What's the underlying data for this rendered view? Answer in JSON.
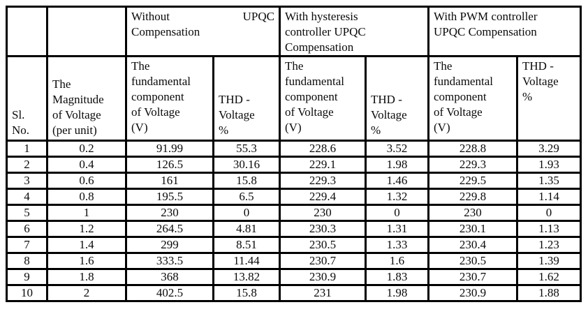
{
  "page": {
    "background_color": "#ffffff",
    "border_color": "#000000",
    "text_color": "#0a0a0a"
  },
  "table": {
    "group_headers": [
      {
        "word_left": "Without",
        "word_right": "UPQC",
        "line2": "Compensation"
      },
      {
        "label": "With hysteresis\ncontroller UPQC\nCompensation"
      },
      {
        "label": "With PWM controller\nUPQC Compensation"
      }
    ],
    "column_headers": [
      "Sl.\nNo.",
      "The\nMagnitude\nof Voltage\n(per unit)",
      "The\nfundamental\ncomponent\nof Voltage\n(V)",
      "THD -\nVoltage\n%",
      "The\nfundamental\ncomponent\nof Voltage\n(V)",
      "THD -\nVoltage\n%",
      "The\nfundamental\ncomponent\nof Voltage\n(V)",
      "THD -\nVoltage\n%"
    ],
    "rows": [
      [
        "1",
        "0.2",
        "91.99",
        "55.3",
        "228.6",
        "3.52",
        "228.8",
        "3.29"
      ],
      [
        "2",
        "0.4",
        "126.5",
        "30.16",
        "229.1",
        "1.98",
        "229.3",
        "1.93"
      ],
      [
        "3",
        "0.6",
        "161",
        "15.8",
        "229.3",
        "1.46",
        "229.5",
        "1.35"
      ],
      [
        "4",
        "0.8",
        "195.5",
        "6.5",
        "229.4",
        "1.32",
        "229.8",
        "1.14"
      ],
      [
        "5",
        "1",
        "230",
        "0",
        "230",
        "0",
        "230",
        "0"
      ],
      [
        "6",
        "1.2",
        "264.5",
        "4.81",
        "230.3",
        "1.31",
        "230.1",
        "1.13"
      ],
      [
        "7",
        "1.4",
        "299",
        "8.51",
        "230.5",
        "1.33",
        "230.4",
        "1.23"
      ],
      [
        "8",
        "1.6",
        "333.5",
        "11.44",
        "230.7",
        "1.6",
        "230.5",
        "1.39"
      ],
      [
        "9",
        "1.8",
        "368",
        "13.82",
        "230.9",
        "1.83",
        "230.7",
        "1.62"
      ],
      [
        "10",
        "2",
        "402.5",
        "15.8",
        "231",
        "1.98",
        "230.9",
        "1.88"
      ]
    ]
  }
}
